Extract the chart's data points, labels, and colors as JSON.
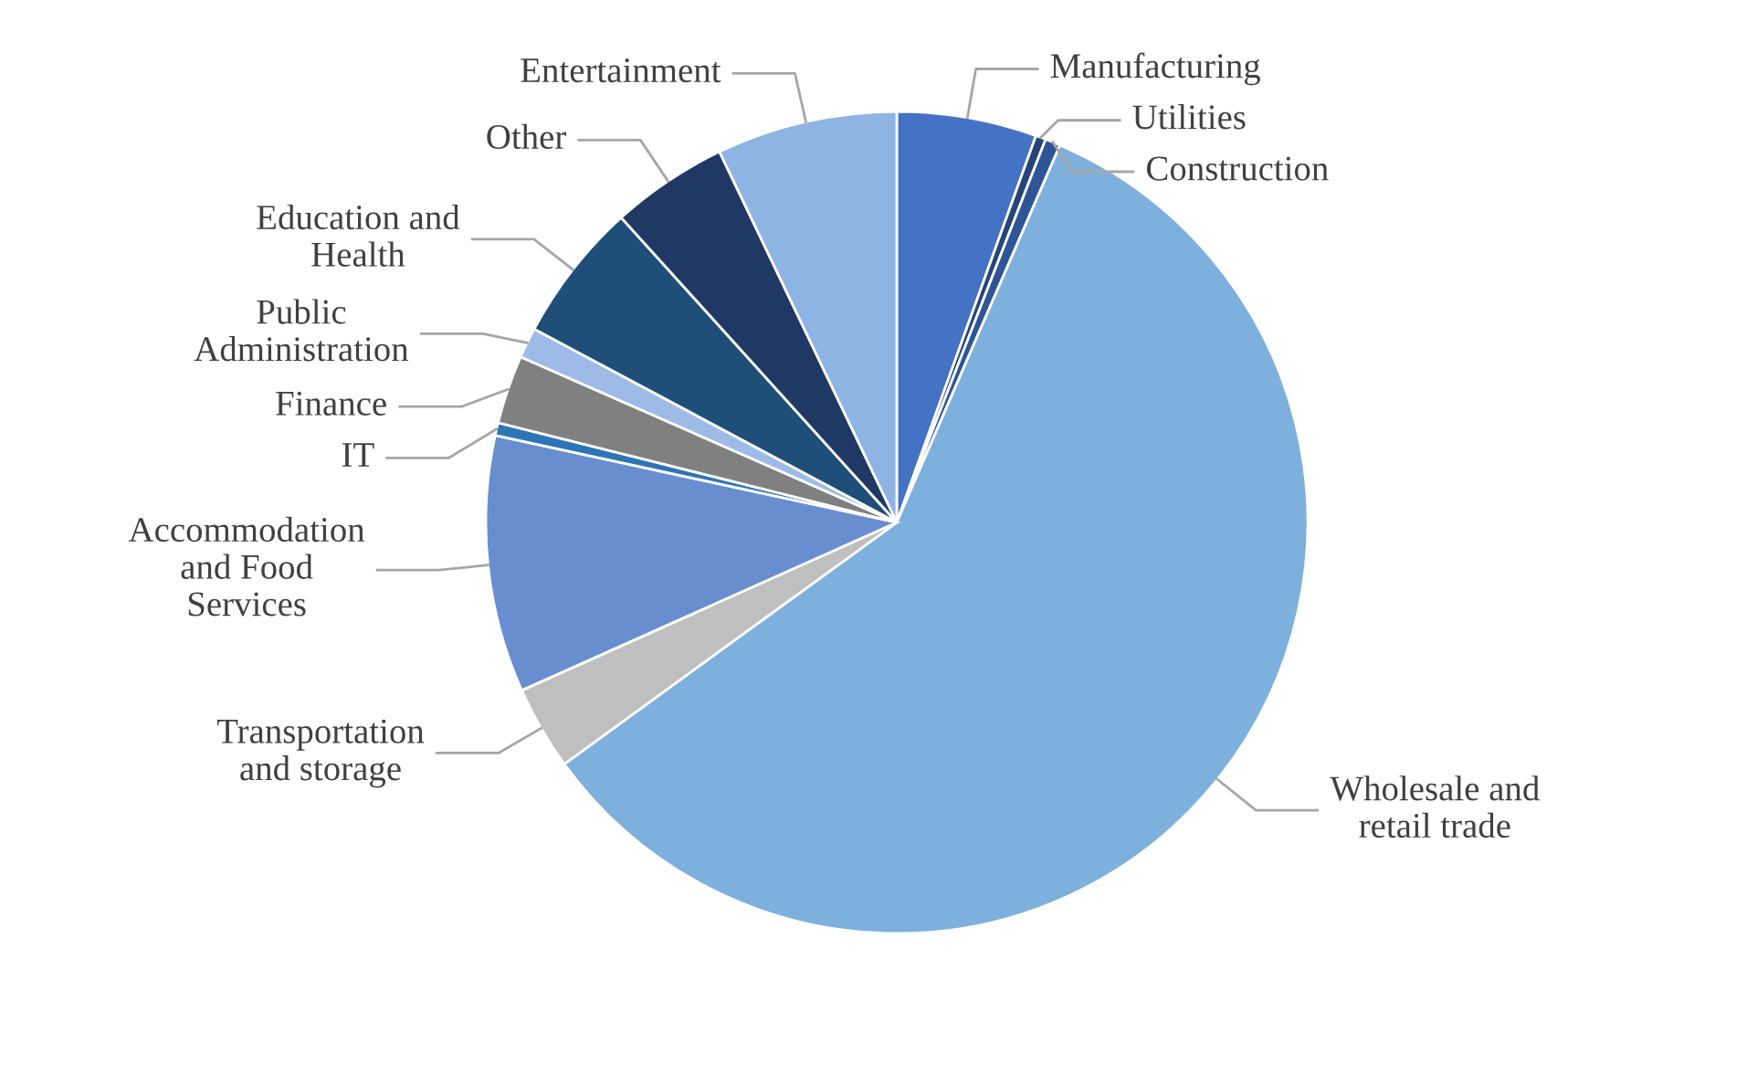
{
  "chart_data": {
    "type": "pie",
    "categories": [
      "Manufacturing",
      "Utilities",
      "Construction",
      "Wholesale and retail trade",
      "Transportation and storage",
      "Accommodation and Food Services",
      "IT",
      "Finance",
      "Public Administration",
      "Education and Health",
      "Other",
      "Entertainment"
    ],
    "values": [
      5.5,
      0.4,
      0.6,
      58.5,
      3.3,
      10.1,
      0.5,
      2.7,
      1.2,
      5.5,
      4.6,
      7.1
    ],
    "colors": [
      "#4472c4",
      "#264478",
      "#2f5597",
      "#7eb0de",
      "#bfbfbf",
      "#698ed0",
      "#2e75b6",
      "#808080",
      "#9dbbe6",
      "#1f4e79",
      "#203864",
      "#8eb4e3"
    ]
  }
}
